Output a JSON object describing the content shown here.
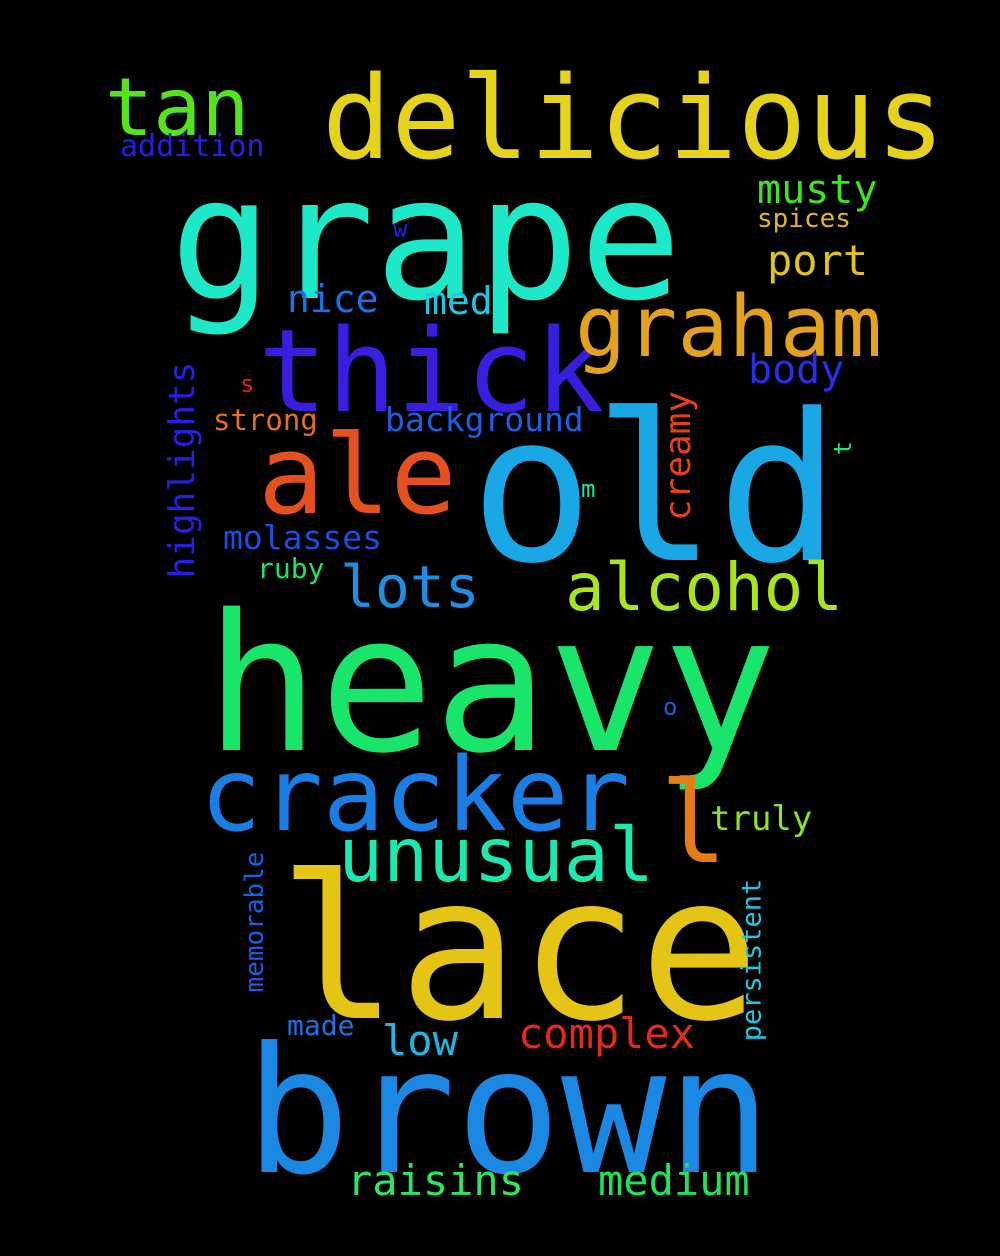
{
  "background": "#000000",
  "words": [
    {
      "text": "grape",
      "color": "#1de9c8",
      "rotated": false
    },
    {
      "text": "heavy",
      "color": "#19e56a",
      "rotated": false
    },
    {
      "text": "lace",
      "color": "#e4c414",
      "rotated": false
    },
    {
      "text": "old",
      "color": "#1aa7e6",
      "rotated": false
    },
    {
      "text": "brown",
      "color": "#1b88e4",
      "rotated": false
    },
    {
      "text": "delicious",
      "color": "#e5d21c",
      "rotated": false
    },
    {
      "text": "thick",
      "color": "#3a1ee0",
      "rotated": false
    },
    {
      "text": "ale",
      "color": "#e4501e",
      "rotated": false
    },
    {
      "text": "cracker",
      "color": "#1a7ee4",
      "rotated": false
    },
    {
      "text": "graham",
      "color": "#e4a11c",
      "rotated": false
    },
    {
      "text": "unusual",
      "color": "#1de8b0",
      "rotated": false
    },
    {
      "text": "l",
      "color": "#e47c1c",
      "rotated": false
    },
    {
      "text": "tan",
      "color": "#52e51c",
      "rotated": false
    },
    {
      "text": "alcohol",
      "color": "#a9e51c",
      "rotated": false
    },
    {
      "text": "lots",
      "color": "#1d90e4",
      "rotated": false
    },
    {
      "text": "musty",
      "color": "#3fe51c",
      "rotated": false
    },
    {
      "text": "port",
      "color": "#e4c21c",
      "rotated": false
    },
    {
      "text": "nice",
      "color": "#1c72e4",
      "rotated": false
    },
    {
      "text": "med",
      "color": "#1cc8e4",
      "rotated": false
    },
    {
      "text": "body",
      "color": "#2a2ee4",
      "rotated": false
    },
    {
      "text": "background",
      "color": "#1c5ee4",
      "rotated": false
    },
    {
      "text": "strong",
      "color": "#e4701c",
      "rotated": false
    },
    {
      "text": "s",
      "color": "#e41c2a",
      "rotated": false
    },
    {
      "text": "highlights",
      "color": "#2a1ee4",
      "rotated": true
    },
    {
      "text": "creamy",
      "color": "#e4401c",
      "rotated": true
    },
    {
      "text": "molasses",
      "color": "#1c4ee4",
      "rotated": false
    },
    {
      "text": "ruby",
      "color": "#1ce464",
      "rotated": false
    },
    {
      "text": "m",
      "color": "#1ce4a4",
      "rotated": false
    },
    {
      "text": "t",
      "color": "#1ce47c",
      "rotated": true
    },
    {
      "text": "o",
      "color": "#1c5ce4",
      "rotated": false
    },
    {
      "text": "w",
      "color": "#2a1ee4",
      "rotated": false
    },
    {
      "text": "spices",
      "color": "#e4b81c",
      "rotated": false
    },
    {
      "text": "addition",
      "color": "#2a1ee4",
      "rotated": false
    },
    {
      "text": "truly",
      "color": "#8ee51c",
      "rotated": false
    },
    {
      "text": "memorable",
      "color": "#1c5ee4",
      "rotated": true
    },
    {
      "text": "persistent",
      "color": "#1cc8e4",
      "rotated": true
    },
    {
      "text": "made",
      "color": "#1c72e4",
      "rotated": false
    },
    {
      "text": "low",
      "color": "#1cb8e4",
      "rotated": false
    },
    {
      "text": "complex",
      "color": "#e42a1c",
      "rotated": false
    },
    {
      "text": "raisins",
      "color": "#2ee464",
      "rotated": false
    },
    {
      "text": "medium",
      "color": "#1ce45e",
      "rotated": false
    }
  ]
}
